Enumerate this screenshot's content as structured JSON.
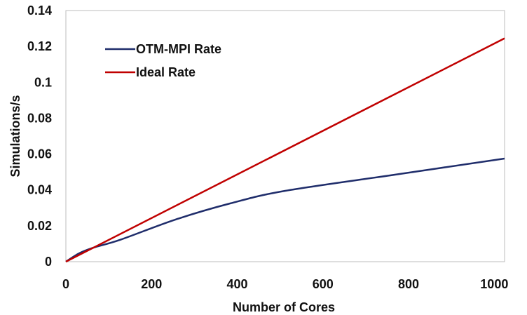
{
  "chart_data": {
    "type": "line",
    "xlabel": "Number of Cores",
    "ylabel": "Simulations/s",
    "xlim": [
      0,
      1024
    ],
    "ylim": [
      0,
      0.14
    ],
    "x_ticks": [
      "0",
      "200",
      "400",
      "600",
      "800",
      "1000"
    ],
    "y_ticks": [
      "0",
      "0.02",
      "0.04",
      "0.06",
      "0.08",
      "0.1",
      "0.12",
      "0.14"
    ],
    "grid": false,
    "legend_position": "top-left",
    "series": [
      {
        "name": "OTM-MPI Rate",
        "color": "#1f2d6b",
        "x": [
          0,
          32,
          64,
          128,
          256,
          384,
          512,
          768,
          1024
        ],
        "y": [
          0,
          0.0048,
          0.0078,
          0.0123,
          0.0235,
          0.0325,
          0.0395,
          0.0485,
          0.0575
        ]
      },
      {
        "name": "Ideal Rate",
        "color": "#c00000",
        "x": [
          0,
          1024
        ],
        "y": [
          0,
          0.1245
        ]
      }
    ]
  }
}
